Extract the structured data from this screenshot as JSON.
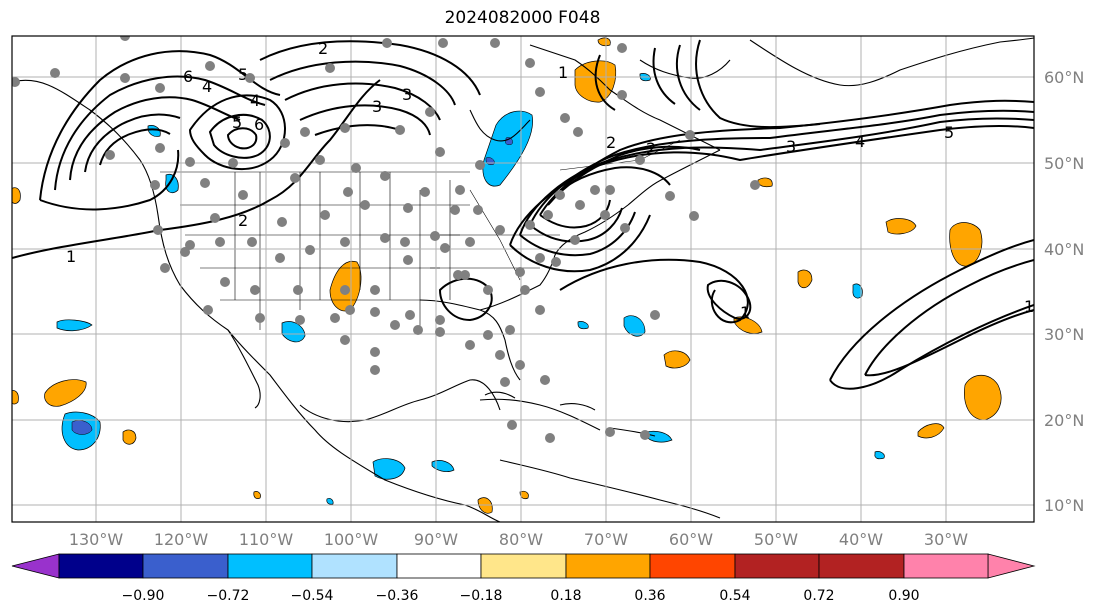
{
  "title": "2024082000 F048",
  "map": {
    "lon_ticks": [
      "130°W",
      "120°W",
      "110°W",
      "100°W",
      "90°W",
      "80°W",
      "70°W",
      "60°W",
      "50°W",
      "40°W",
      "30°W"
    ],
    "lat_ticks": [
      "60°N",
      "50°N",
      "40°N",
      "30°N",
      "20°N",
      "10°N"
    ],
    "contour_labels": [
      "6",
      "5",
      "4",
      "3",
      "2",
      "1",
      "6",
      "5",
      "4",
      "3",
      "2",
      "1",
      "2",
      "1",
      "5",
      "4",
      "3",
      "2",
      "1"
    ]
  },
  "colorbar": {
    "colors": [
      "#9932cc",
      "#00008b",
      "#3a5fcd",
      "#00bfff",
      "#b0e2ff",
      "#ffffff",
      "#ffe68a",
      "#ffa500",
      "#ff4500",
      "#b22222",
      "#ff82ab"
    ],
    "labels": [
      "−0.90",
      "−0.72",
      "−0.54",
      "−0.36",
      "−0.18",
      "0.18",
      "0.36",
      "0.54",
      "0.72",
      "0.90"
    ]
  }
}
